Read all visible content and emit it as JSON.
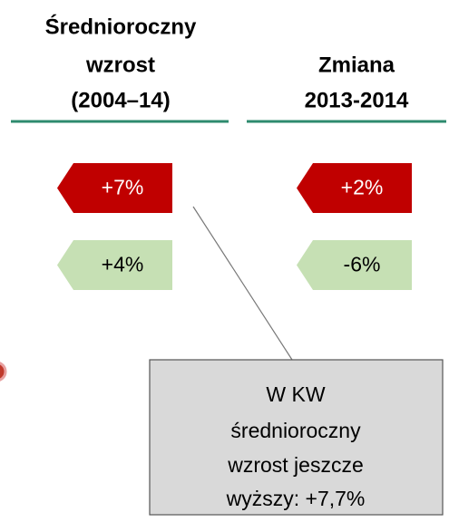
{
  "headers": [
    {
      "lines": [
        "Średnioroczny",
        "wzrost",
        "(2004–14)"
      ]
    },
    {
      "lines": [
        "Zmiana",
        "2013-2014"
      ]
    }
  ],
  "badges": [
    [
      "+7%",
      "+2%"
    ],
    [
      "+4%",
      "-6%"
    ]
  ],
  "callout": {
    "lines": [
      "W KW",
      "średnioroczny",
      "wzrost jeszcze",
      "wyższy: +7,7%"
    ]
  }
}
